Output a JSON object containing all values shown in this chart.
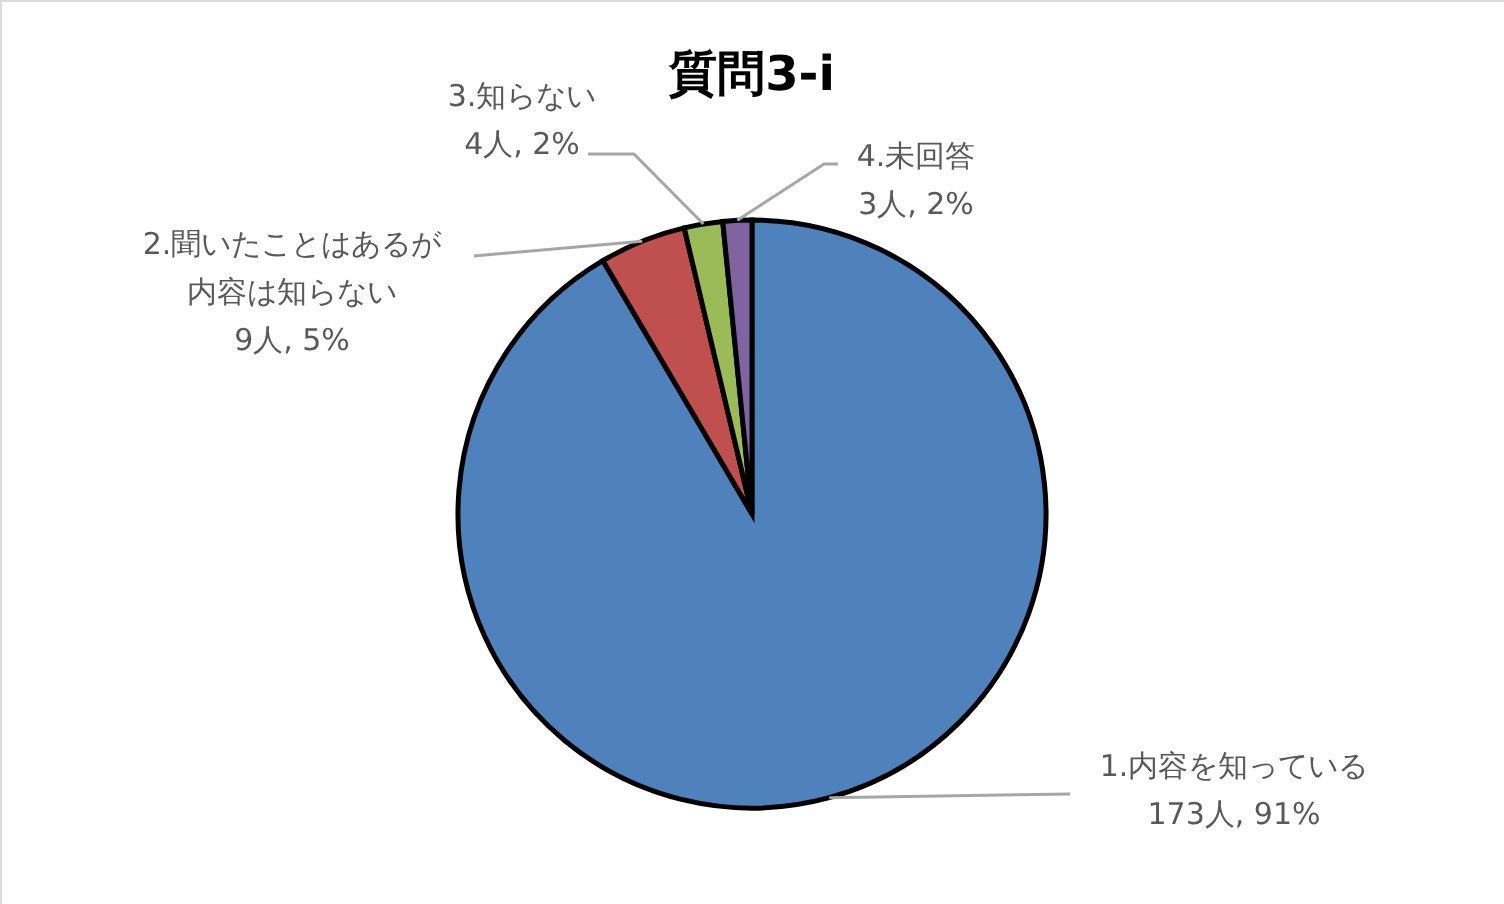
{
  "chart_data": {
    "type": "pie",
    "title": "質問3-i",
    "categories": [
      "1.内容を知っている",
      "2.聞いたことはあるが内容は知らない",
      "3.知らない",
      "4.未回答"
    ],
    "values": [
      173,
      9,
      4,
      3
    ],
    "colors": [
      "#4f81bd",
      "#c0504d",
      "#9bbb59",
      "#8064a2"
    ],
    "value_labels": [
      "173人, 91%",
      "9人, 5%",
      "4人, 2%",
      "3人, 2%"
    ]
  }
}
